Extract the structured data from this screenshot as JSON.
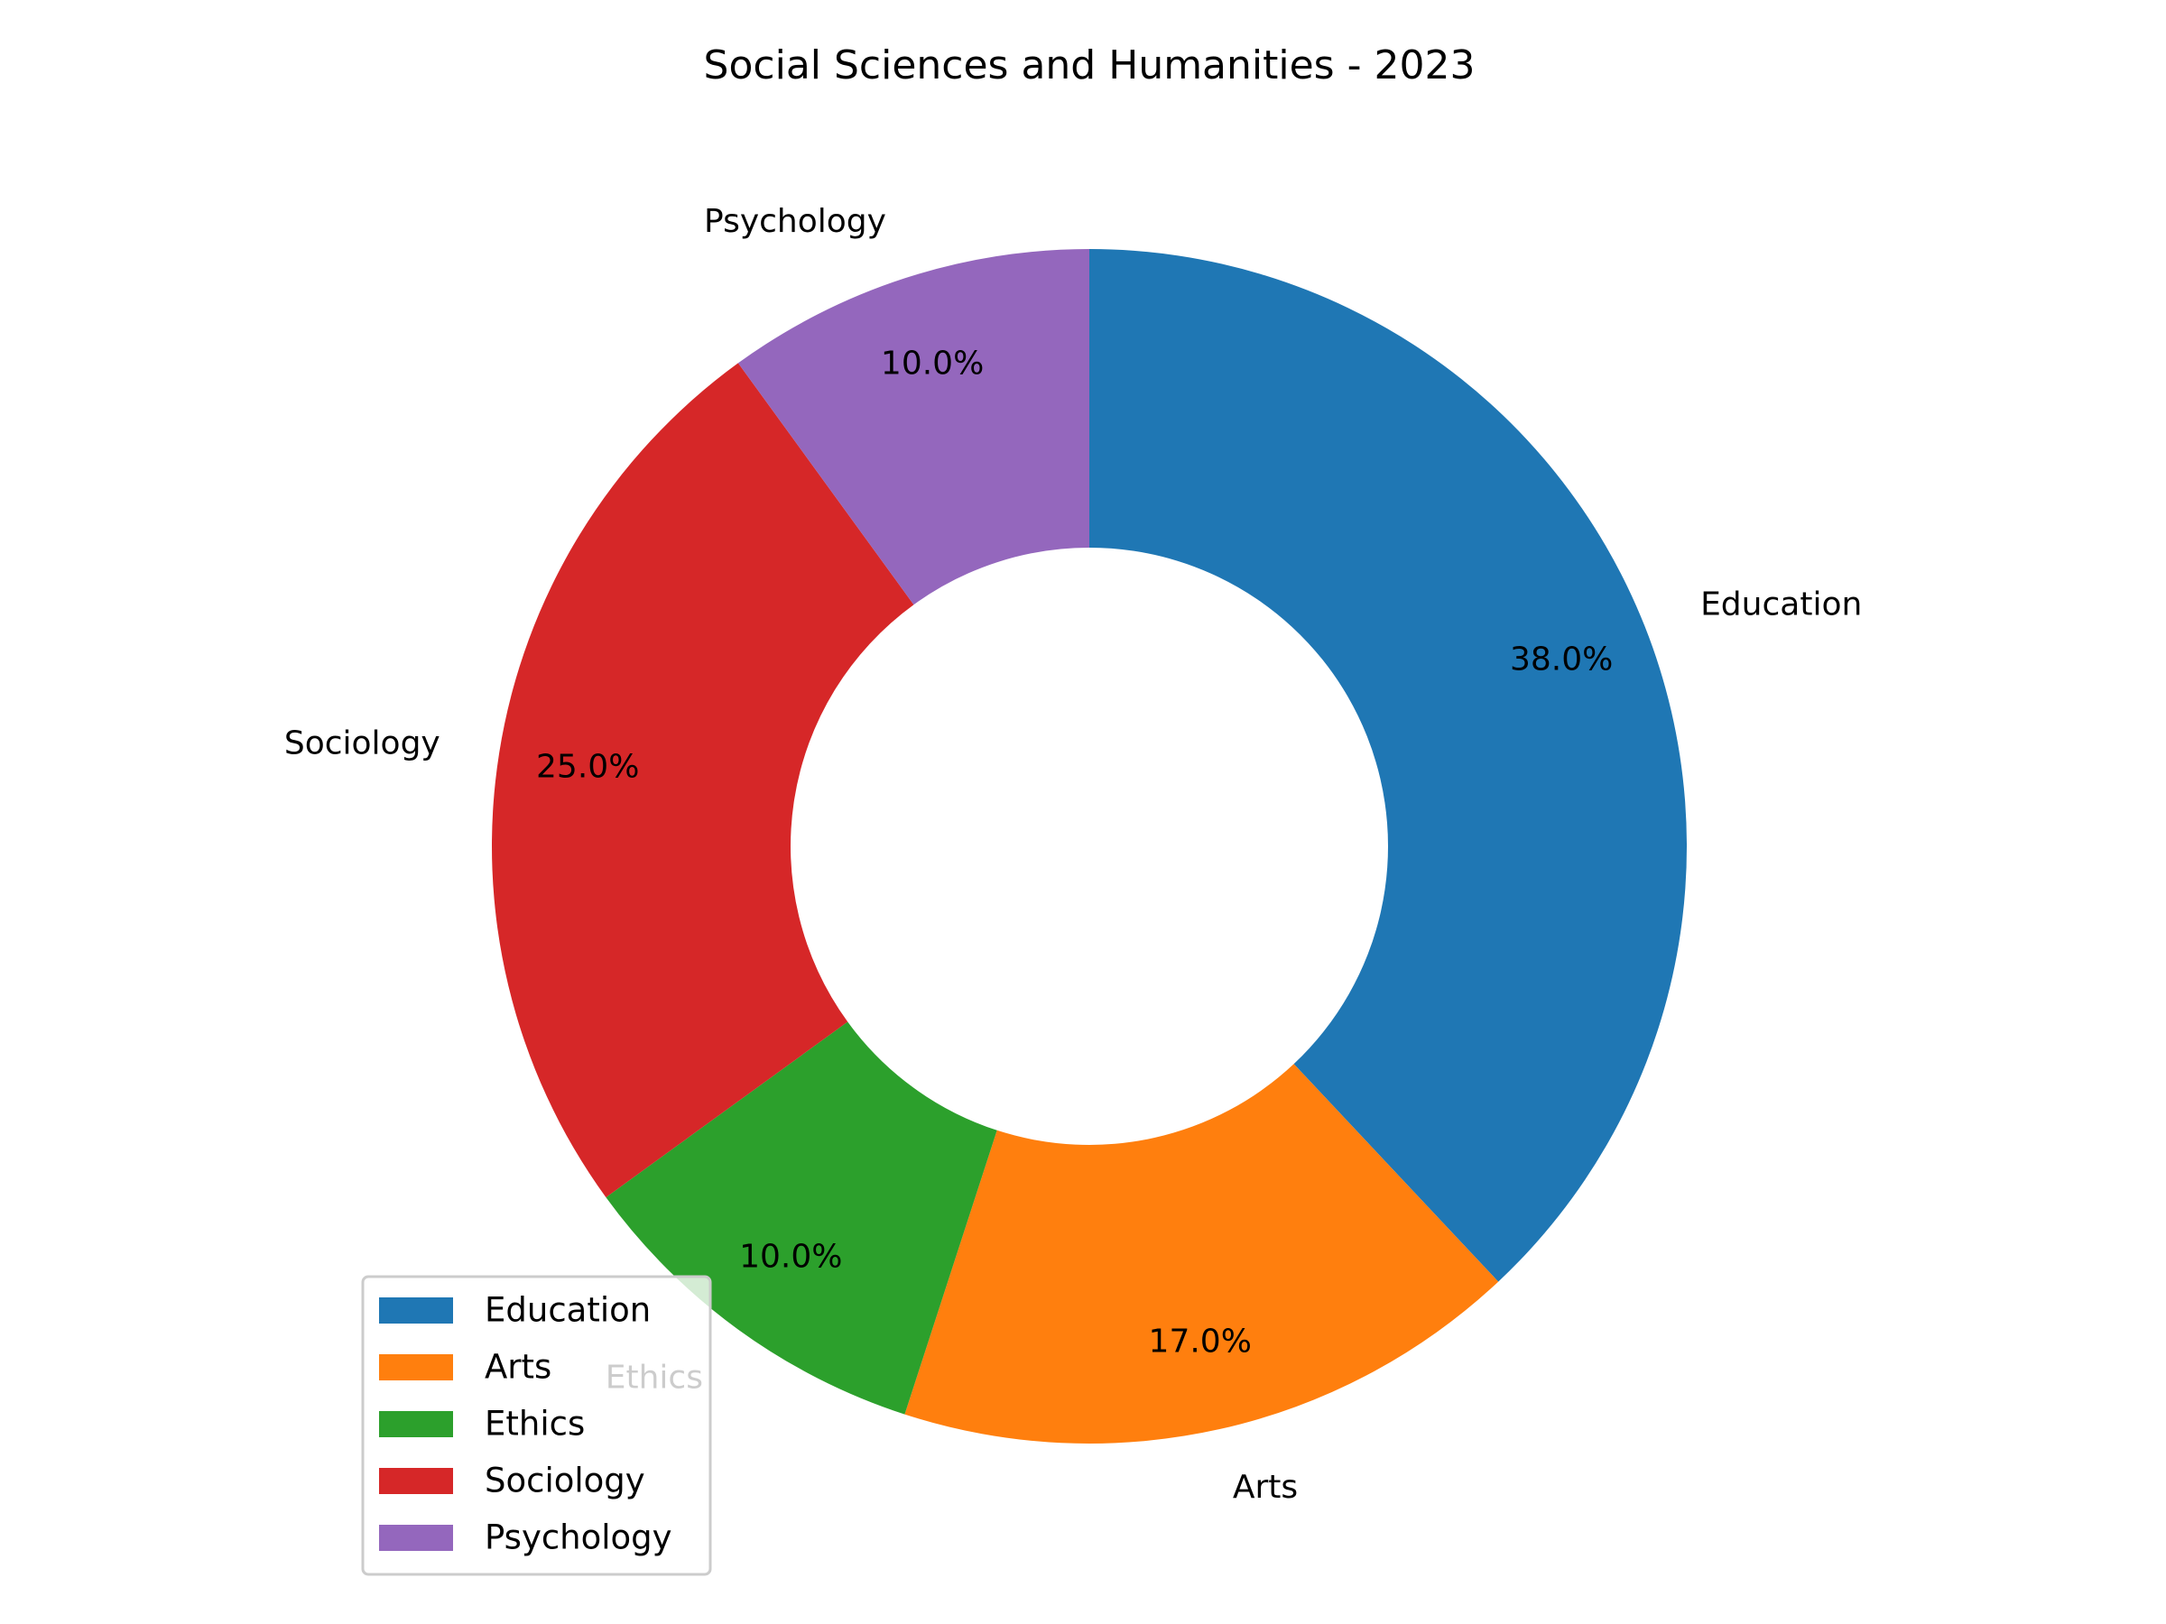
{
  "chart_data": {
    "type": "pie",
    "variant": "donut",
    "title": "Social Sciences and Humanities - 2023",
    "categories": [
      "Education",
      "Arts",
      "Ethics",
      "Sociology",
      "Psychology"
    ],
    "values": [
      38.0,
      17.0,
      10.0,
      25.0,
      10.0
    ],
    "percent_labels": [
      "38.0%",
      "17.0%",
      "10.0%",
      "25.0%",
      "10.0%"
    ],
    "colors": [
      "#1f77b4",
      "#ff7f0e",
      "#2ca02c",
      "#d62728",
      "#9467bd"
    ],
    "start_angle": "top",
    "direction": "clockwise",
    "legend": {
      "placement": "lower-left",
      "entries": [
        "Education",
        "Arts",
        "Ethics",
        "Sociology",
        "Psychology"
      ]
    }
  }
}
